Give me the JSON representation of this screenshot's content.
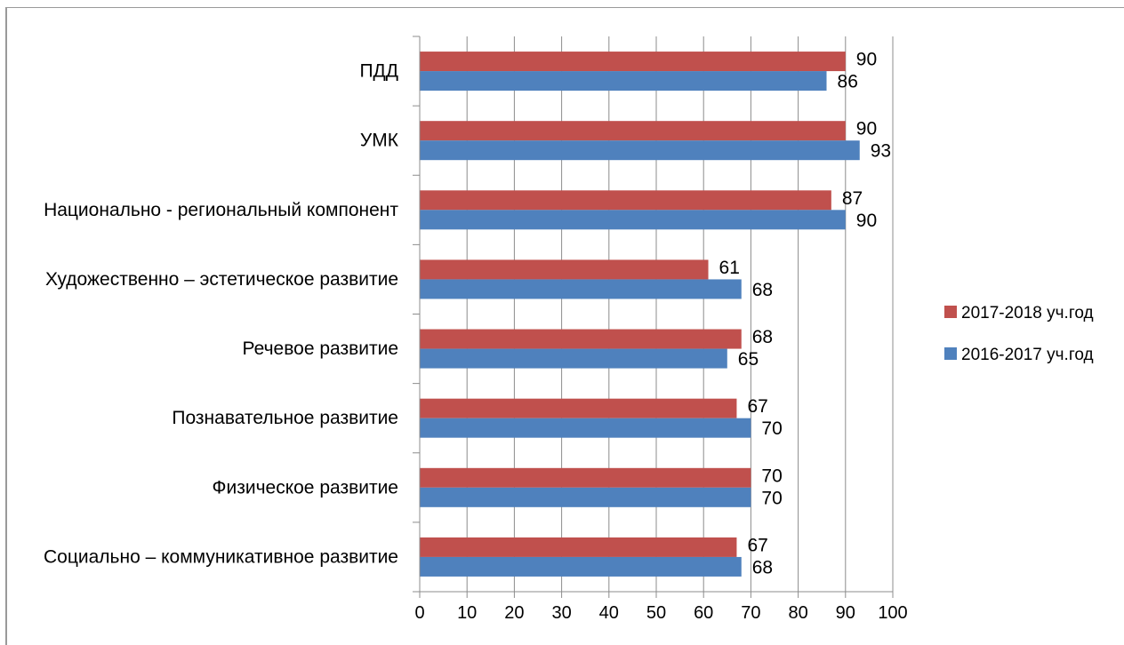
{
  "chart_data": {
    "type": "bar",
    "orientation": "horizontal",
    "title": "",
    "xlabel": "",
    "ylabel": "",
    "xlim": [
      0,
      100
    ],
    "xticks": [
      0,
      10,
      20,
      30,
      40,
      50,
      60,
      70,
      80,
      90,
      100
    ],
    "grid": "vertical",
    "legend_position": "right",
    "categories": [
      "ПДД",
      "УМК",
      "Национально -  региональный компонент",
      "Художественно – эстетическое развитие",
      "Речевое развитие",
      "Познавательное развитие",
      "Физическое развитие",
      "Социально – коммуникативное развитие"
    ],
    "series": [
      {
        "name": "2017-2018 уч.год",
        "color": "#c0504d",
        "values": [
          90,
          90,
          87,
          61,
          68,
          67,
          70,
          67
        ]
      },
      {
        "name": "2016-2017 уч.год",
        "color": "#4f81bd",
        "values": [
          86,
          93,
          90,
          68,
          65,
          70,
          70,
          68
        ]
      }
    ]
  }
}
